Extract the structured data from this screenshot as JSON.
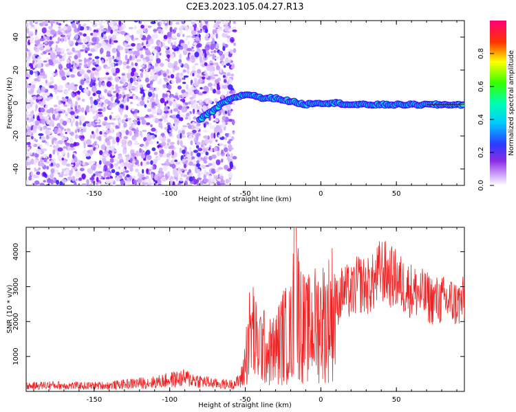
{
  "title": "C2E3.2023.105.04.27.R13",
  "chart_data": [
    {
      "type": "heatmap",
      "xlabel": "Height of straight line (km)",
      "ylabel": "Frequency (Hz)",
      "xlim": [
        -195,
        95
      ],
      "ylim": [
        -50,
        50
      ],
      "xticks": [
        -150,
        -100,
        -50,
        0,
        50
      ],
      "yticks": [
        -40,
        -20,
        0,
        20,
        40
      ],
      "colorbar": {
        "label": "Normalized spectral amplitude",
        "range": [
          0.0,
          1.0
        ],
        "ticks": [
          0.0,
          0.2,
          0.4,
          0.6,
          0.8
        ]
      },
      "signal_trace": {
        "x": [
          -80,
          -75,
          -70,
          -65,
          -60,
          -55,
          -50,
          -45,
          -40,
          -35,
          -30,
          -25,
          -20,
          -15,
          -10,
          -5,
          0,
          10,
          20,
          30,
          40,
          50,
          60,
          70,
          80,
          90,
          95
        ],
        "y": [
          -10,
          -7,
          -4,
          0,
          2,
          4,
          5,
          5,
          3,
          3,
          3,
          2,
          1,
          0,
          -1,
          0,
          0,
          0,
          -1,
          -1,
          -1,
          -1,
          -1,
          -1,
          -1,
          -1,
          -1
        ]
      },
      "grid": false
    },
    {
      "type": "line",
      "xlabel": "Height of straight line (km)",
      "ylabel": "SNR (10 * v/v)",
      "xlim": [
        -195,
        95
      ],
      "ylim": [
        0,
        4700
      ],
      "xticks": [
        -150,
        -100,
        -50,
        0,
        50
      ],
      "yticks": [
        1000,
        2000,
        3000,
        4000
      ],
      "color": "#ee2222",
      "series": [
        {
          "x": [
            -195,
            -180,
            -160,
            -140,
            -120,
            -110,
            -100,
            -90,
            -80,
            -70,
            -60,
            -55,
            -52,
            -50,
            -48,
            -45,
            -42,
            -40,
            -35,
            -30,
            -25,
            -20,
            -17,
            -15,
            -13,
            -10,
            -5,
            0,
            5,
            10,
            15,
            20,
            25,
            30,
            35,
            40,
            45,
            50,
            55,
            60,
            65,
            70,
            75,
            80,
            85,
            90,
            95
          ],
          "y": [
            150,
            180,
            160,
            170,
            240,
            260,
            330,
            380,
            300,
            220,
            200,
            260,
            420,
            900,
            1500,
            1800,
            1200,
            1400,
            1100,
            1200,
            1600,
            1600,
            2600,
            2400,
            2000,
            1700,
            1900,
            2000,
            2100,
            2500,
            2900,
            2800,
            3100,
            3000,
            3100,
            3500,
            3300,
            3200,
            3000,
            2900,
            2800,
            2700,
            2600,
            2600,
            2600,
            2500,
            2600
          ]
        }
      ],
      "grid": false
    }
  ]
}
